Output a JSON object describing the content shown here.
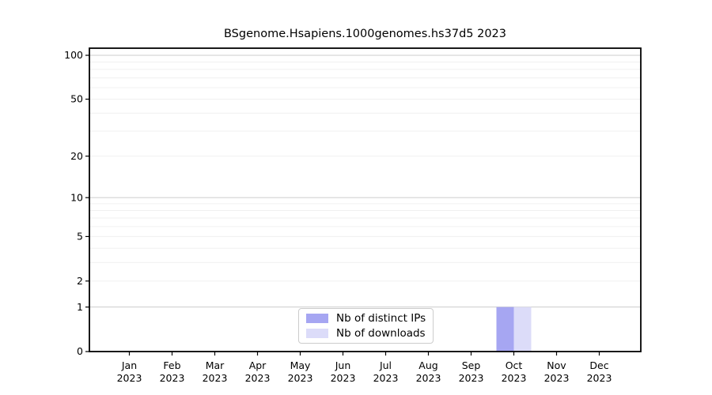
{
  "chart_data": {
    "type": "bar",
    "title": "BSgenome.Hsapiens.1000genomes.hs37d5 2023",
    "x_categories": [
      "Jan",
      "Feb",
      "Mar",
      "Apr",
      "May",
      "Jun",
      "Jul",
      "Aug",
      "Sep",
      "Oct",
      "Nov",
      "Dec"
    ],
    "x_year": "2023",
    "y_scale": "log1p",
    "y_ticks": [
      0,
      1,
      2,
      5,
      10,
      20,
      50,
      100
    ],
    "ylim": [
      0,
      112
    ],
    "grid": true,
    "legend_position": "bottom-center",
    "series": [
      {
        "name": "Nb of distinct IPs",
        "color": "#a6a6f2",
        "values": [
          0,
          0,
          0,
          0,
          0,
          0,
          0,
          0,
          0,
          1,
          0,
          0
        ]
      },
      {
        "name": "Nb of downloads",
        "color": "#dcdcf9",
        "values": [
          0,
          0,
          0,
          0,
          0,
          0,
          0,
          0,
          0,
          1,
          0,
          0
        ]
      }
    ]
  },
  "colors": {
    "frame": "#000000",
    "grid_major": "#cccccc",
    "grid_minor": "#f0f0f0",
    "text": "#000000"
  }
}
